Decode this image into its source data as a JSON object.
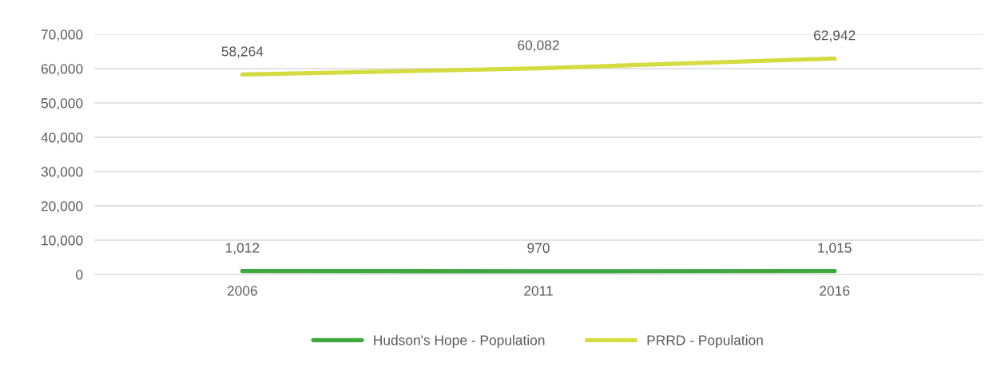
{
  "chart_data": {
    "type": "line",
    "categories": [
      "2006",
      "2011",
      "2016"
    ],
    "series": [
      {
        "name": "Hudson's Hope - Population",
        "color": "#3ea63e",
        "values": [
          1012,
          970,
          1015
        ],
        "value_labels": [
          "1,012",
          "970",
          "1,015"
        ]
      },
      {
        "name": "PRRD - Population",
        "color": "#d5dc42",
        "values": [
          58264,
          60082,
          62942
        ],
        "value_labels": [
          "58,264",
          "60,082",
          "62,942"
        ]
      }
    ],
    "ylim": [
      0,
      70000
    ],
    "yticks": [
      {
        "value": 0,
        "label": "0"
      },
      {
        "value": 10000,
        "label": "10,000"
      },
      {
        "value": 20000,
        "label": "20,000"
      },
      {
        "value": 30000,
        "label": "30,000"
      },
      {
        "value": 40000,
        "label": "40,000"
      },
      {
        "value": 50000,
        "label": "50,000"
      },
      {
        "value": 60000,
        "label": "60,000"
      },
      {
        "value": 70000,
        "label": "70,000"
      }
    ],
    "grid": "y",
    "legend": "bottom",
    "marker": "none",
    "line_style": "solid"
  }
}
